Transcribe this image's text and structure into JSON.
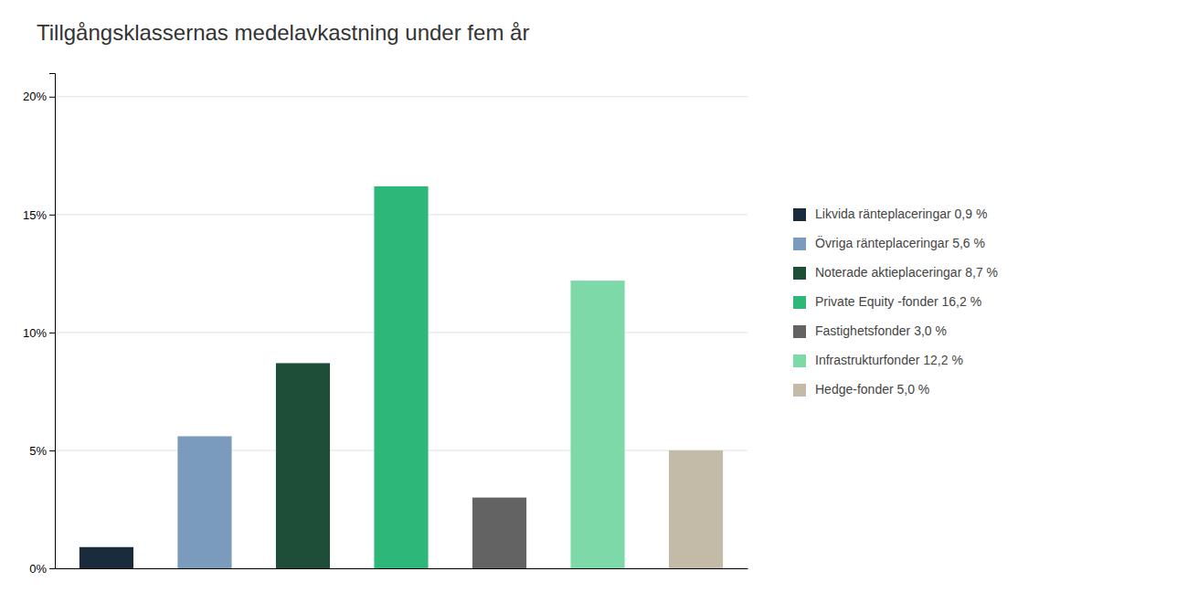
{
  "chart_data": {
    "type": "bar",
    "title": "Tillgångsklassernas medelavkastning under fem år",
    "categories": [
      "Likvida ränteplaceringar 0,9 %",
      "Övriga ränteplaceringar 5,6 %",
      "Noterade aktieplaceringar 8,7 %",
      "Private Equity -fonder 16,2 %",
      "Fastighetsfonder 3,0 %",
      "Infrastrukturfonder 12,2 %",
      "Hedge-fonder 5,0 %"
    ],
    "values": [
      0.9,
      5.6,
      8.7,
      16.2,
      3.0,
      12.2,
      5.0
    ],
    "colors": [
      "#1a2b3c",
      "#7a9bbc",
      "#1e4d38",
      "#2db87a",
      "#636363",
      "#7dd9a8",
      "#c4baa8"
    ],
    "ylim": [
      0,
      21
    ],
    "yticks": [
      {
        "value": 0,
        "label": "0%"
      },
      {
        "value": 5,
        "label": "5%"
      },
      {
        "value": 10,
        "label": "10%"
      },
      {
        "value": 15,
        "label": "15%"
      },
      {
        "value": 20,
        "label": "20%"
      }
    ],
    "grid": true,
    "legend": "right",
    "tick_labels": "y"
  }
}
